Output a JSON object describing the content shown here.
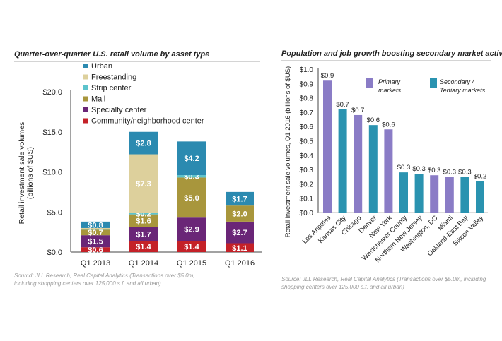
{
  "chart_data": [
    {
      "type": "bar",
      "stacked": true,
      "title": "Quarter-over-quarter U.S. retail volume by asset type",
      "ylabel": "Retail investment sale volumes (billions of $US)",
      "ylim": [
        0,
        20
      ],
      "yticks": [
        "$0.0",
        "$5.0",
        "$10.0",
        "$15.0",
        "$20.0"
      ],
      "ytick_values": [
        0,
        5,
        10,
        15,
        20
      ],
      "categories": [
        "Q1 2013",
        "Q1 2014",
        "Q1 2015",
        "Q1 2016"
      ],
      "legend_position": "top-left",
      "grid": false,
      "series": [
        {
          "name": "Community/neighborhood center",
          "color": "#c42128",
          "values": [
            0.6,
            1.4,
            1.4,
            1.1
          ],
          "labels": [
            "$0.6",
            "$1.4",
            "$1.4",
            "$1.1"
          ]
        },
        {
          "name": "Specialty center",
          "color": "#6a2677",
          "values": [
            1.5,
            1.7,
            2.9,
            2.7
          ],
          "labels": [
            "$1.5",
            "$1.7",
            "$2.9",
            "$2.7"
          ]
        },
        {
          "name": "Mall",
          "color": "#a8963c",
          "values": [
            0.7,
            1.6,
            5.0,
            2.0
          ],
          "labels": [
            "$0.7",
            "$1.6",
            "$5.0",
            "$2.0"
          ]
        },
        {
          "name": "Strip center",
          "color": "#5cc3cc",
          "values": [
            0.1,
            0.2,
            0.3,
            0
          ],
          "labels": [
            "",
            "$0.2",
            "$0.3",
            ""
          ]
        },
        {
          "name": "Freestanding",
          "color": "#ddd09c",
          "values": [
            0.1,
            7.3,
            0,
            0
          ],
          "labels": [
            "",
            "$7.3",
            "",
            ""
          ]
        },
        {
          "name": "Urban",
          "color": "#2b8ab0",
          "values": [
            0.8,
            2.8,
            4.2,
            1.7
          ],
          "labels": [
            "$0.8",
            "$2.8",
            "$4.2",
            "$1.7"
          ]
        }
      ],
      "source": "Sourcd: JLL Research, Real Capital Analytics (Transactions over $5.0m, including shopping centers over 125,000 s.f. and all urban)"
    },
    {
      "type": "bar",
      "title": "Population and job growth boosting secondary market activity",
      "ylabel": "Retail investment sale volumes, Q1 2016 (billions of $US)",
      "ylim": [
        0,
        1.0
      ],
      "yticks": [
        "$0.0",
        "$0.1",
        "$0.2",
        "$0.3",
        "$0.4",
        "$0.5",
        "$0.6",
        "$0.7",
        "$0.8",
        "$0.9",
        "$1.0"
      ],
      "ytick_values": [
        0,
        0.1,
        0.2,
        0.3,
        0.4,
        0.5,
        0.6,
        0.7,
        0.8,
        0.9,
        1.0
      ],
      "categories": [
        "Los Angeles",
        "Kansas City",
        "Chicago",
        "Denver",
        "New York",
        "Westchester County",
        "Northern New Jersey",
        "Washington, DC",
        "Miami",
        "Oakland-East Bay",
        "Silicon Valley"
      ],
      "values": [
        0.92,
        0.72,
        0.68,
        0.61,
        0.58,
        0.28,
        0.27,
        0.26,
        0.25,
        0.25,
        0.22
      ],
      "labels": [
        "$0.9",
        "$0.7",
        "$0.7",
        "$0.6",
        "$0.6",
        "$0.3",
        "$0.3",
        "$0.3",
        "$0.3",
        "$0.3",
        "$0.2"
      ],
      "groups": [
        "Primary",
        "Secondary",
        "Primary",
        "Secondary",
        "Primary",
        "Secondary",
        "Secondary",
        "Primary",
        "Primary",
        "Secondary",
        "Secondary"
      ],
      "legend": [
        {
          "key": "Primary",
          "line1": "Primary",
          "line2": "markets",
          "color": "#8a7cc6"
        },
        {
          "key": "Secondary",
          "line1": "Secondary /",
          "line2": "Tertiary markets",
          "color": "#2a93b0"
        }
      ],
      "legend_position": "top-right",
      "grid": false,
      "source": "Source: JLL Research, Real Capital Analytics (Transactions over $5.0m, including shopping centers over 125,000 s.f. and all urban)"
    }
  ]
}
